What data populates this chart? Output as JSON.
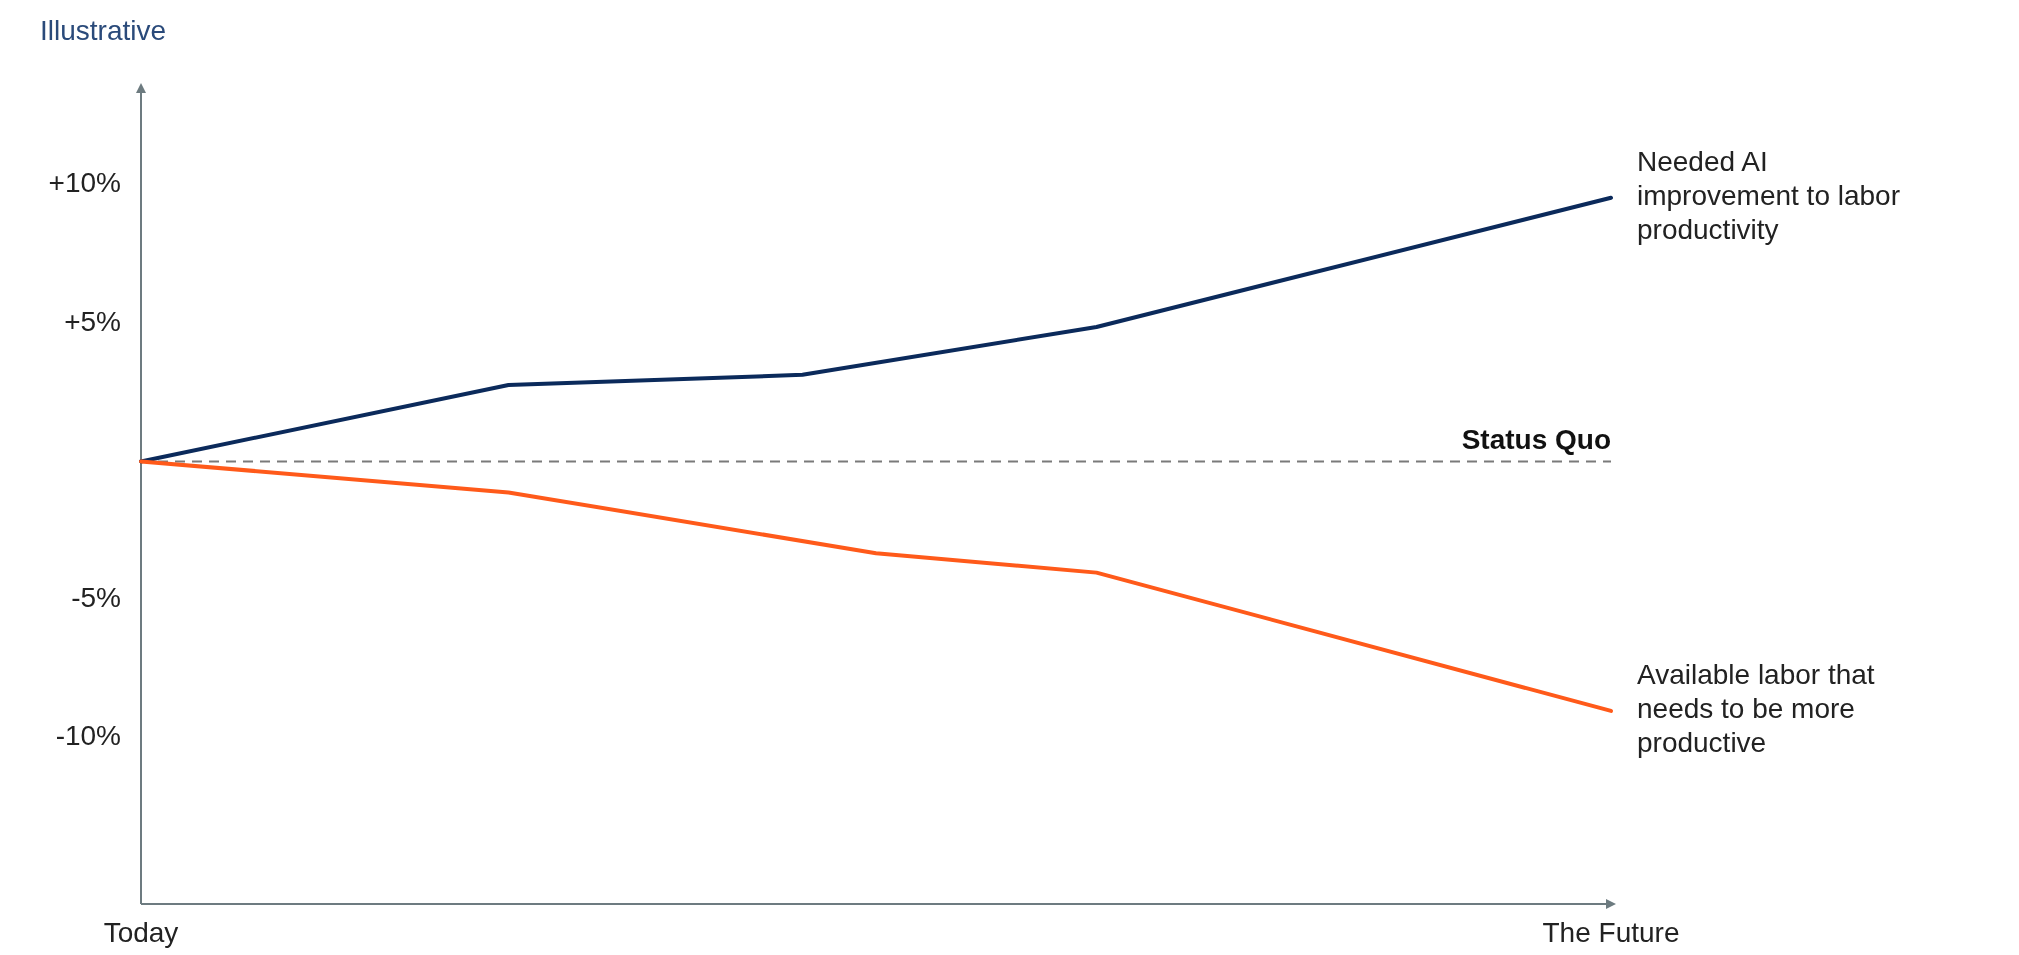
{
  "chart_data": {
    "type": "line",
    "subtitle": "Illustrative",
    "categories": [
      "Today",
      null,
      null,
      null,
      null,
      null,
      null,
      null,
      null,
      null,
      null,
      null,
      null,
      null,
      null,
      null,
      null,
      null,
      null,
      null,
      "The Future"
    ],
    "ylim": [
      -16,
      13.5
    ],
    "yticks": [
      {
        "value": 10,
        "label": "+10%"
      },
      {
        "value": 5,
        "label": "+5%"
      },
      {
        "value": -5,
        "label": "-5%"
      },
      {
        "value": -10,
        "label": "-10%"
      }
    ],
    "series": [
      {
        "name": "Needed AI improvement to labor productivity",
        "color": "#0b2a5b",
        "values": [
          0,
          null,
          null,
          null,
          null,
          2.76,
          null,
          null,
          null,
          3.13,
          null,
          null,
          null,
          4.86,
          null,
          null,
          null,
          null,
          null,
          null,
          9.53
        ]
      },
      {
        "name": "Available labor that needs to be more productive",
        "color": "#ff5a1a",
        "values": [
          0,
          null,
          null,
          null,
          null,
          -1.12,
          null,
          null,
          null,
          null,
          -3.32,
          null,
          null,
          -4.02,
          null,
          null,
          null,
          null,
          null,
          null,
          -9.02
        ]
      }
    ],
    "ref_lines": [
      {
        "axis": "y",
        "value": 0,
        "label": "Status Quo",
        "color": "#7a7a7a",
        "line_style": "dashed"
      }
    ],
    "grid": false,
    "marker": "none",
    "line_style": "solid"
  }
}
